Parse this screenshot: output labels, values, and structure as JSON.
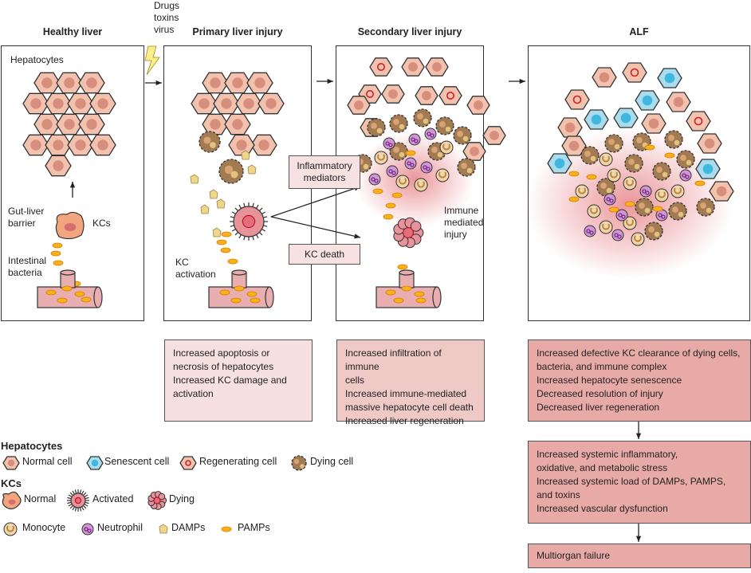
{
  "stages": [
    {
      "title": "Healthy liver"
    },
    {
      "title": "Primary liver injury"
    },
    {
      "title": "Secondary liver injury"
    },
    {
      "title": "ALF"
    }
  ],
  "trigger": "Drugs\ntoxins\nvirus",
  "healthy": {
    "hepatocytes": "Hepatocytes",
    "barrier": "Gut-liver\nbarrier",
    "kcs": "KCs",
    "bacteria": "Intestinal\nbacteria"
  },
  "primary": {
    "kc_activation": "KC\nactivation"
  },
  "mediators": {
    "inflammatory": "Inflammatory\nmediators",
    "kc_death": "KC death"
  },
  "secondary": {
    "immune": "Immune\nmediated\ninjury"
  },
  "outcomes": {
    "primary": [
      "Increased apoptosis or",
      "necrosis of hepatocytes",
      "Increased KC damage and",
      "activation"
    ],
    "secondary": [
      "Increased infiltration of immune",
      "cells",
      "Increased immune-mediated",
      "massive hepatocyte cell death",
      "Increased liver regeneration"
    ],
    "alf": [
      "Increased defective KC clearance of dying cells,",
      "bacteria, and immune complex",
      "Increased hepatocyte senescence",
      "Decreased resolution of injury",
      "Decreased liver regeneration"
    ],
    "systemic": [
      "Increased systemic inflammatory,",
      "oxidative, and metabolic stress",
      "Increased systemic load of DAMPs, PAMPS,",
      "and toxins",
      "Increased vascular dysfunction"
    ],
    "final": "Multiorgan failure"
  },
  "legend": {
    "hepatocytes_title": "Hepatocytes",
    "hepatocytes": [
      {
        "label": "Normal cell",
        "icon": "normal-hepatocyte"
      },
      {
        "label": "Senescent cell",
        "icon": "senescent-hepatocyte"
      },
      {
        "label": "Regenerating cell",
        "icon": "regenerating-hepatocyte"
      },
      {
        "label": "Dying cell",
        "icon": "dying-hepatocyte"
      }
    ],
    "kcs_title": "KCs",
    "kcs": [
      {
        "label": "Normal",
        "icon": "normal-kc"
      },
      {
        "label": "Activated",
        "icon": "activated-kc"
      },
      {
        "label": "Dying",
        "icon": "dying-kc"
      }
    ],
    "others": [
      {
        "label": "Monocyte",
        "icon": "monocyte"
      },
      {
        "label": "Neutrophil",
        "icon": "neutrophil"
      },
      {
        "label": "DAMPs",
        "icon": "damp"
      },
      {
        "label": "PAMPs",
        "icon": "pamp"
      }
    ]
  },
  "colors": {
    "hepatocyte": "#f2c2ae",
    "senescent": "#a9dcec",
    "pamp": "#f6b21b",
    "box1": "#f6e0e0",
    "box2": "#efc9c6",
    "box3": "#e8aaa7",
    "inflammation": "#e5737a"
  }
}
